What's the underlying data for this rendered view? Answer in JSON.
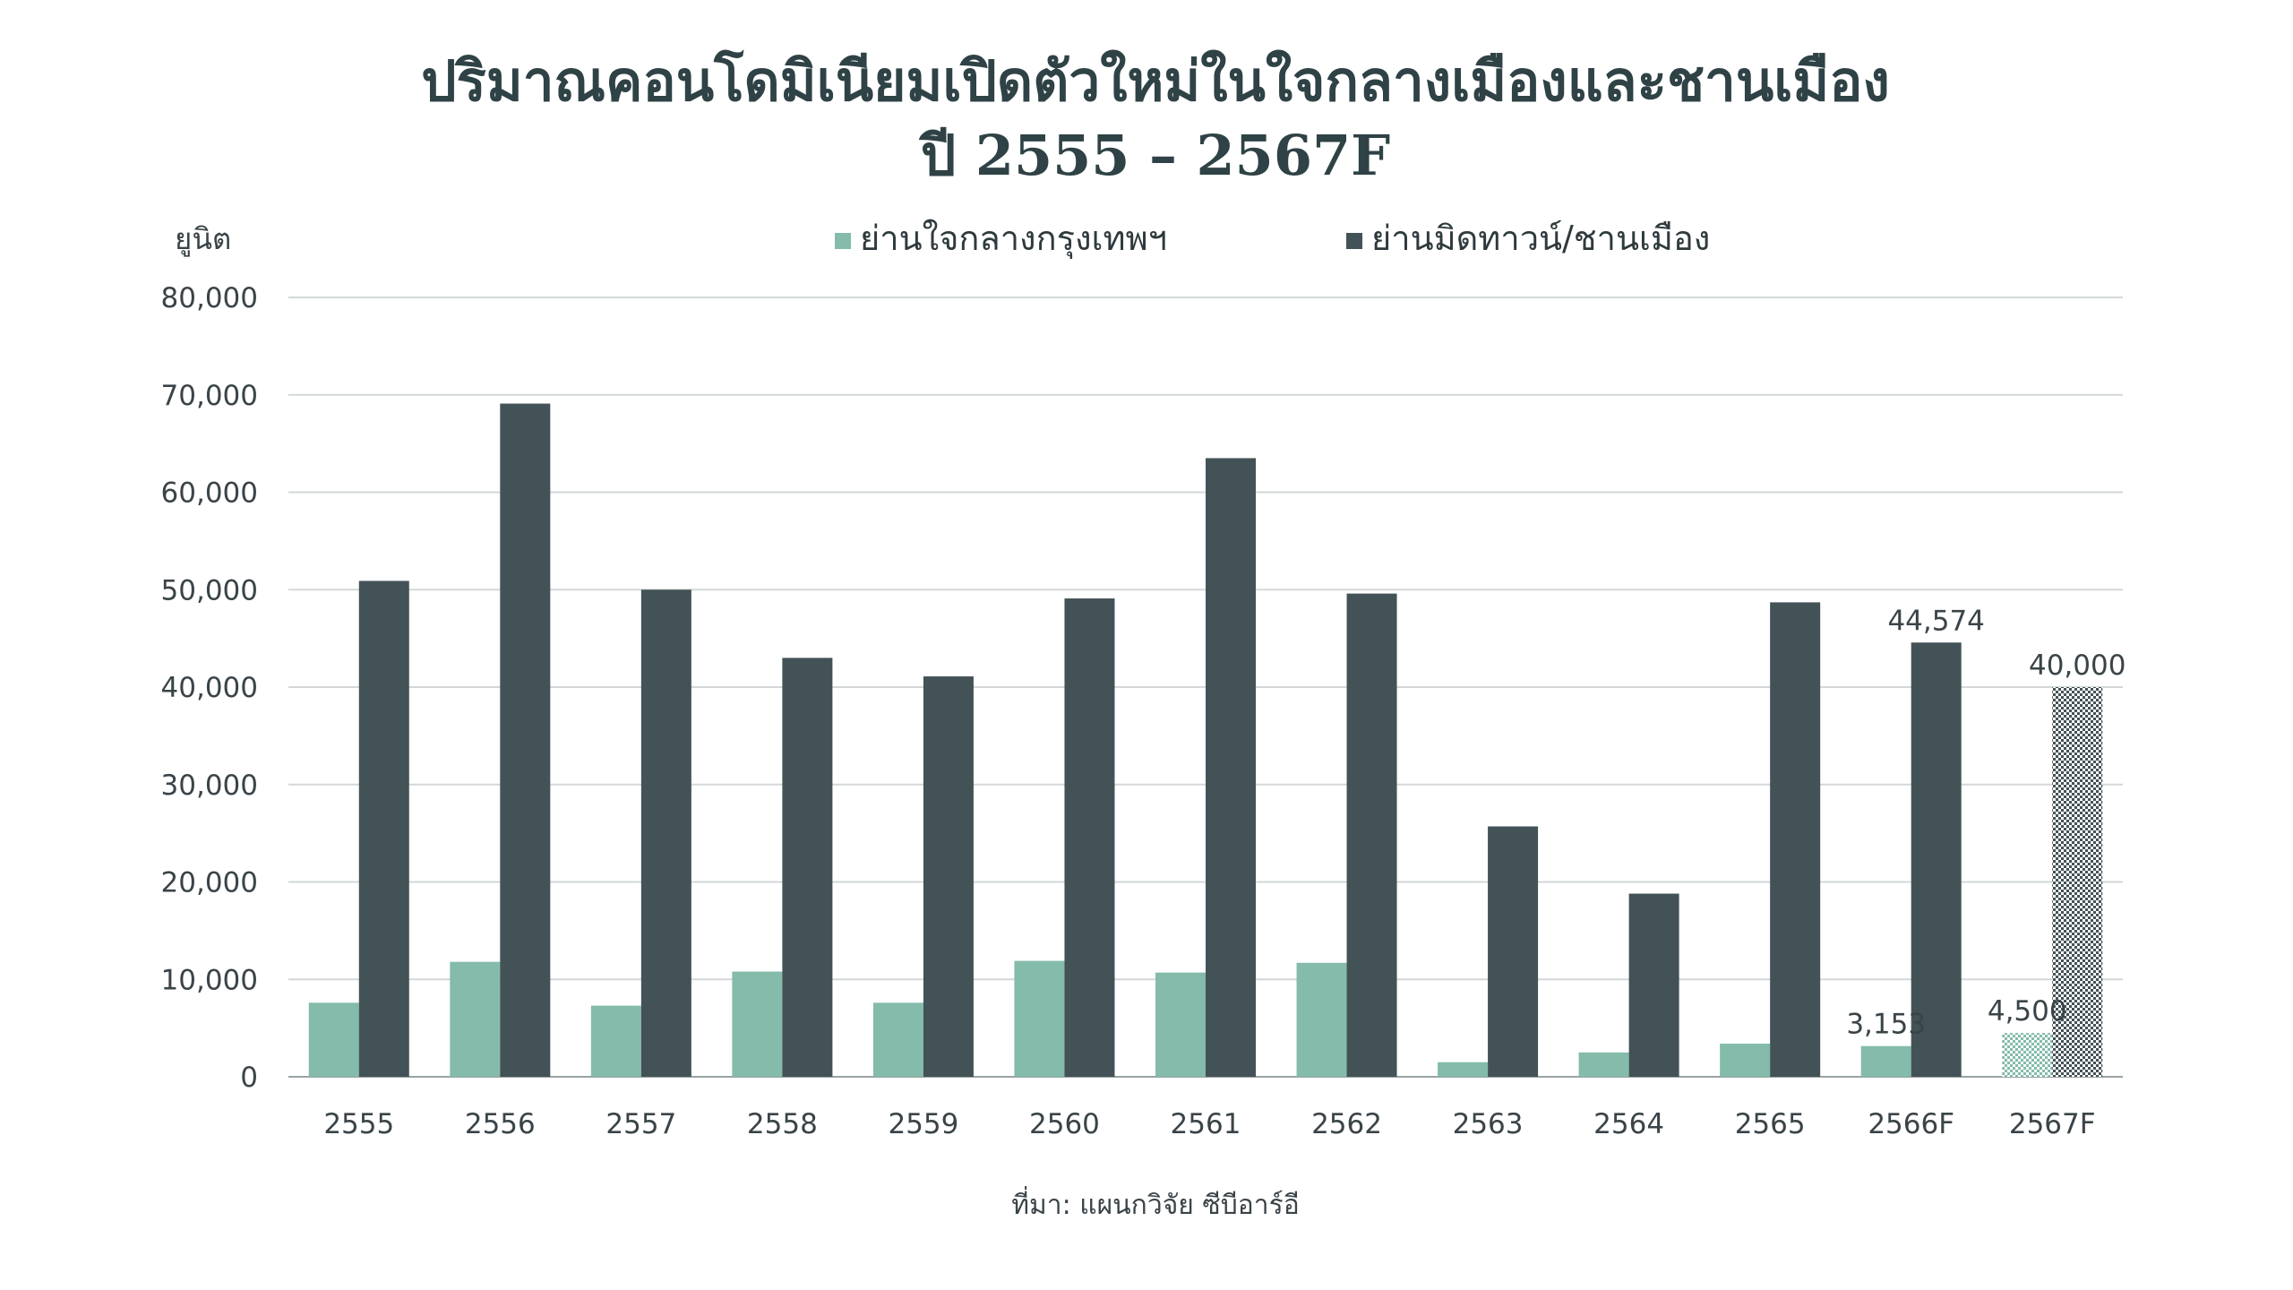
{
  "chart_data": {
    "type": "bar",
    "title_line1": "ปริมาณคอนโดมิเนียมเปิดตัวใหม่ในใจกลางเมืองและชานเมือง",
    "title_line2": "ปี 2555 – 2567F",
    "ylabel": "ยูนิต",
    "xlabel": "",
    "ylim": [
      0,
      80000
    ],
    "yticks": [
      "0",
      "10,000",
      "20,000",
      "30,000",
      "40,000",
      "50,000",
      "60,000",
      "70,000",
      "80,000"
    ],
    "categories": [
      "2555",
      "2556",
      "2557",
      "2558",
      "2559",
      "2560",
      "2561",
      "2562",
      "2563",
      "2564",
      "2565",
      "2566F",
      "2567F"
    ],
    "series": [
      {
        "name": "ย่านใจกลางกรุงเทพฯ",
        "color": "#84bbab",
        "values": [
          7600,
          11800,
          7300,
          10800,
          7600,
          11900,
          10700,
          11700,
          1500,
          2500,
          3400,
          3153,
          4500
        ],
        "data_labels": {
          "11": "3,153",
          "12": "4,500"
        }
      },
      {
        "name": "ย่านมิดทาวน์/ชานเมือง",
        "color": "#435256",
        "values": [
          50900,
          69100,
          50000,
          43000,
          41100,
          49100,
          63500,
          49600,
          25700,
          18800,
          48700,
          44574,
          40000
        ],
        "data_labels": {
          "11": "44,574",
          "12": "40,000"
        }
      }
    ],
    "forecast_categories": [
      "2567F"
    ],
    "grid": true,
    "legend_position": "top-center"
  },
  "source_note": "ที่มา:  แผนกวิจัย ซีบีอาร์อี"
}
